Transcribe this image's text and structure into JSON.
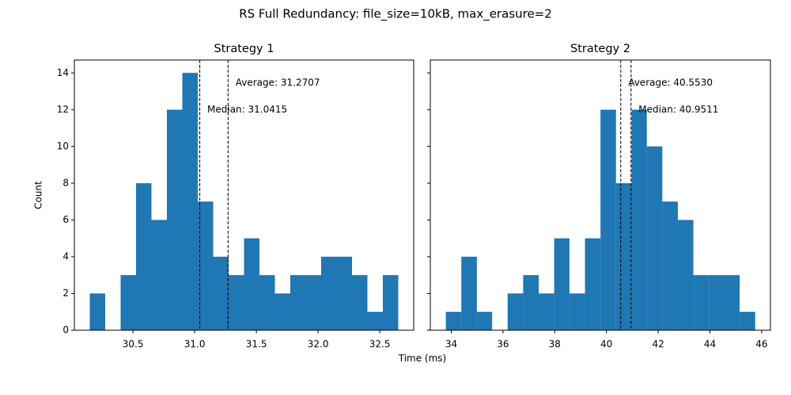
{
  "suptitle": "RS Full Redundancy: file_size=10kB, max_erasure=2",
  "xlabel": "Time (ms)",
  "ylabel": "Count",
  "chart_data": [
    {
      "type": "histogram",
      "title": "Strategy 1",
      "color": "#1f77b4",
      "bins": [
        30.15,
        30.275,
        30.4,
        30.525,
        30.65,
        30.775,
        30.9,
        31.025,
        31.15,
        31.275,
        31.4,
        31.525,
        31.65,
        31.775,
        31.9,
        32.025,
        32.15,
        32.275,
        32.4,
        32.525,
        32.65
      ],
      "values": [
        2,
        0,
        3,
        8,
        6,
        12,
        14,
        7,
        4,
        3,
        5,
        3,
        2,
        3,
        3,
        4,
        4,
        3,
        1,
        3
      ],
      "xlim": [
        30.025,
        32.775
      ],
      "xticks": [
        30.5,
        {
          "value": 31,
          "label": "31.0"
        },
        31.5,
        {
          "value": 32,
          "label": "32.0"
        },
        32.5
      ],
      "ylim": [
        0,
        14.7
      ],
      "yticks": [
        0,
        2,
        4,
        6,
        8,
        10,
        12,
        14
      ],
      "mean": 31.2707,
      "mean_label": "Average: 31.2707",
      "median": 31.0415,
      "median_label": "Median: 31.0415"
    },
    {
      "type": "histogram",
      "title": "Strategy 2",
      "color": "#1f77b4",
      "bins": [
        33.79,
        34.39,
        34.99,
        35.58,
        36.18,
        36.78,
        37.38,
        37.98,
        38.57,
        39.17,
        39.77,
        40.37,
        40.97,
        41.56,
        42.16,
        42.76,
        43.36,
        43.96,
        44.55,
        45.15,
        45.75
      ],
      "values": [
        1,
        4,
        1,
        0,
        2,
        3,
        2,
        5,
        2,
        5,
        12,
        8,
        12,
        10,
        7,
        6,
        3,
        3,
        3,
        1
      ],
      "xlim": [
        33.19,
        46.34
      ],
      "xticks": [
        34,
        36,
        38,
        40,
        42,
        44,
        46
      ],
      "ylim": [
        0,
        14.7
      ],
      "yticks": [
        0,
        2,
        4,
        6,
        8,
        10,
        12,
        14
      ],
      "mean": 40.553,
      "mean_label": "Average: 40.5530",
      "median": 40.9511,
      "median_label": "Median: 40.9511"
    }
  ]
}
